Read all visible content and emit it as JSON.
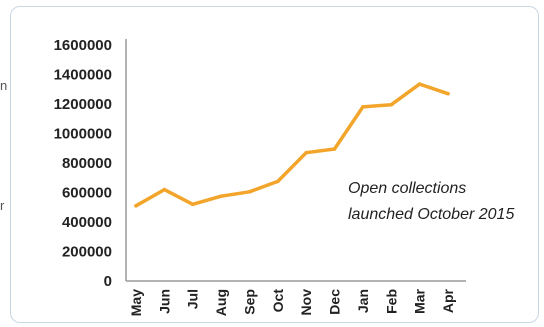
{
  "chart_data": {
    "type": "line",
    "categories": [
      "May",
      "Jun",
      "Jul",
      "Aug",
      "Sep",
      "Oct",
      "Nov",
      "Dec",
      "Jan",
      "Feb",
      "Mar",
      "Apr"
    ],
    "series": [
      {
        "values": [
          510000,
          620000,
          520000,
          575000,
          605000,
          675000,
          870000,
          895000,
          1180000,
          1195000,
          1335000,
          1270000
        ]
      }
    ],
    "yticks": [
      "1600000",
      "1400000",
      "1200000",
      "1000000",
      "800000",
      "600000",
      "400000",
      "200000",
      "0"
    ],
    "ylim": [
      0,
      1600000
    ],
    "annotation": [
      "Open collections",
      "launched October 2015"
    ],
    "grid": false,
    "line_color": "#f3a52b"
  }
}
